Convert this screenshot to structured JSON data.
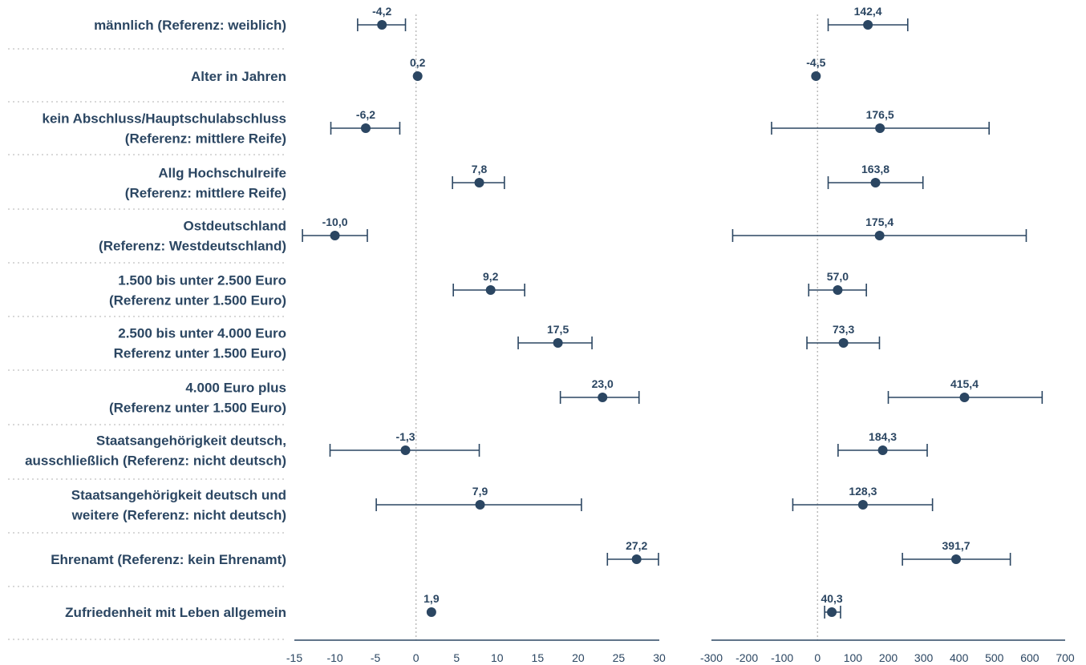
{
  "chart_data": {
    "type": "scatter",
    "style": {
      "marker_color": "#2b4662",
      "zero_line_color": "#bbbbbb",
      "separator_color": "#cccccc",
      "text_color": "#2b4662"
    },
    "rows": [
      {
        "label": [
          "männlich (Referenz: weiblich)"
        ]
      },
      {
        "label": [
          "Alter in Jahren"
        ]
      },
      {
        "label": [
          "kein Abschluss/Hauptschulabschluss",
          "(Referenz: mittlere Reife)"
        ]
      },
      {
        "label": [
          "Allg Hochschulreife",
          "(Referenz: mittlere Reife)"
        ]
      },
      {
        "label": [
          "Ostdeutschland",
          "(Referenz: Westdeutschland)"
        ]
      },
      {
        "label": [
          "1.500 bis unter 2.500 Euro",
          "(Referenz unter 1.500 Euro)"
        ]
      },
      {
        "label": [
          "2.500 bis unter 4.000 Euro",
          "Referenz unter 1.500 Euro)"
        ]
      },
      {
        "label": [
          "4.000 Euro plus",
          "(Referenz unter 1.500 Euro)"
        ]
      },
      {
        "label": [
          "Staatsangehörigkeit deutsch,",
          "ausschließlich (Referenz: nicht deutsch)"
        ]
      },
      {
        "label": [
          "Staatsangehörigkeit deutsch und",
          "weitere (Referenz: nicht deutsch)"
        ]
      },
      {
        "label": [
          "Ehrenamt (Referenz: kein Ehrenamt)"
        ]
      },
      {
        "label": [
          "Zufriedenheit mit Leben allgemein"
        ]
      }
    ],
    "panels": [
      {
        "xlim": [
          -15,
          30
        ],
        "ticks": [
          -15,
          -10,
          -5,
          0,
          5,
          10,
          15,
          20,
          25,
          30
        ],
        "tick_labels": [
          "-15",
          "-10",
          "-5",
          "0",
          "5",
          "10",
          "15",
          "20",
          "25",
          "30"
        ],
        "points": [
          {
            "value": -4.2,
            "label": "-4,2",
            "low": -7.2,
            "high": -1.3
          },
          {
            "value": 0.2,
            "label": "0,2",
            "low": 0.2,
            "high": 0.2
          },
          {
            "value": -6.2,
            "label": "-6,2",
            "low": -10.5,
            "high": -2.0
          },
          {
            "value": 7.8,
            "label": "7,8",
            "low": 4.5,
            "high": 10.9
          },
          {
            "value": -10.0,
            "label": "-10,0",
            "low": -14.0,
            "high": -6.0
          },
          {
            "value": 9.2,
            "label": "9,2",
            "low": 4.6,
            "high": 13.4
          },
          {
            "value": 17.5,
            "label": "17,5",
            "low": 12.6,
            "high": 21.7
          },
          {
            "value": 23.0,
            "label": "23,0",
            "low": 17.8,
            "high": 27.5
          },
          {
            "value": -1.3,
            "label": "-1,3",
            "low": -10.6,
            "high": 7.8
          },
          {
            "value": 7.9,
            "label": "7,9",
            "low": -4.9,
            "high": 20.4
          },
          {
            "value": 27.2,
            "label": "27,2",
            "low": 23.6,
            "high": 29.9
          },
          {
            "value": 1.9,
            "label": "1,9",
            "low": 1.9,
            "high": 1.9
          }
        ]
      },
      {
        "xlim": [
          -300,
          700
        ],
        "ticks": [
          -300,
          -200,
          -100,
          0,
          100,
          200,
          300,
          400,
          500,
          600,
          700
        ],
        "tick_labels": [
          "-300",
          "-200",
          "-100",
          "0",
          "100",
          "200",
          "300",
          "400",
          "500",
          "600",
          "700"
        ],
        "points": [
          {
            "value": 142.4,
            "label": "142,4",
            "low": 30,
            "high": 255
          },
          {
            "value": -4.5,
            "label": "-4,5",
            "low": -4.5,
            "high": -4.5
          },
          {
            "value": 176.5,
            "label": "176,5",
            "low": -130,
            "high": 485
          },
          {
            "value": 163.8,
            "label": "163,8",
            "low": 30,
            "high": 298
          },
          {
            "value": 175.4,
            "label": "175,4",
            "low": -240,
            "high": 590
          },
          {
            "value": 57.0,
            "label": "57,0",
            "low": -25,
            "high": 138
          },
          {
            "value": 73.3,
            "label": "73,3",
            "low": -30,
            "high": 175
          },
          {
            "value": 415.4,
            "label": "415,4",
            "low": 200,
            "high": 635
          },
          {
            "value": 184.3,
            "label": "184,3",
            "low": 58,
            "high": 310
          },
          {
            "value": 128.3,
            "label": "128,3",
            "low": -70,
            "high": 325
          },
          {
            "value": 391.7,
            "label": "391,7",
            "low": 240,
            "high": 545
          },
          {
            "value": 40.3,
            "label": "40,3",
            "low": 20,
            "high": 65
          }
        ]
      }
    ]
  }
}
